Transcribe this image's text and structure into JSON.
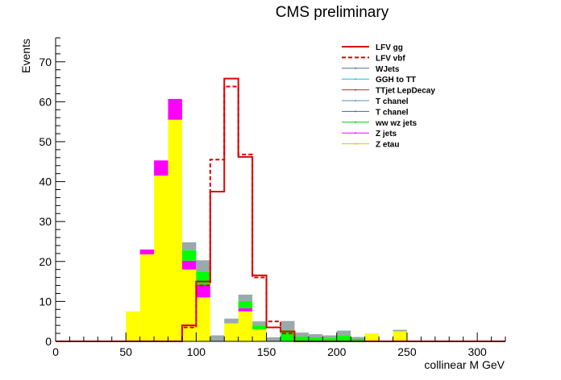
{
  "chart_data": {
    "type": "bar",
    "title": "CMS preliminary",
    "xlabel": "collinear M GeV",
    "ylabel": "Events",
    "xlim": [
      0,
      320
    ],
    "ylim": [
      0,
      76
    ],
    "grid": false,
    "legend_position": "top-right",
    "x_ticks": [
      0,
      50,
      100,
      150,
      200,
      250,
      300
    ],
    "y_ticks": [
      0,
      10,
      20,
      30,
      40,
      50,
      60,
      70
    ],
    "bin_width": 10,
    "stack": [
      {
        "name": "Z etau",
        "color": "#ffff00",
        "bins": [
          [
            50,
            7.5
          ],
          [
            60,
            21.8
          ],
          [
            70,
            41.5
          ],
          [
            80,
            55.5
          ],
          [
            90,
            18.0
          ],
          [
            100,
            11.0
          ],
          [
            120,
            4.5
          ],
          [
            130,
            7.5
          ],
          [
            140,
            3.0
          ],
          [
            220,
            2.0
          ],
          [
            240,
            2.5
          ]
        ]
      },
      {
        "name": "Z jets",
        "color": "#ff00ff",
        "bins": [
          [
            60,
            1.2
          ],
          [
            70,
            3.8
          ],
          [
            80,
            5.2
          ],
          [
            90,
            2.2
          ],
          [
            100,
            3.2
          ],
          [
            130,
            0.8
          ]
        ]
      },
      {
        "name": "ww wz jets",
        "color": "#00ff00",
        "bins": [
          [
            90,
            2.6
          ],
          [
            100,
            3.3
          ],
          [
            130,
            1.8
          ],
          [
            140,
            1.0
          ],
          [
            160,
            2.8
          ],
          [
            170,
            1.2
          ],
          [
            180,
            1.0
          ],
          [
            190,
            0.8
          ],
          [
            200,
            1.5
          ],
          [
            210,
            0.6
          ]
        ]
      },
      {
        "name": "T chanel",
        "color": "#99aaaa",
        "bins": [
          [
            90,
            2.0
          ],
          [
            100,
            2.8
          ],
          [
            110,
            1.5
          ],
          [
            120,
            1.2
          ],
          [
            130,
            1.6
          ],
          [
            140,
            1.0
          ],
          [
            150,
            1.0
          ],
          [
            160,
            2.3
          ],
          [
            170,
            1.0
          ],
          [
            180,
            0.8
          ],
          [
            190,
            0.7
          ],
          [
            200,
            1.2
          ],
          [
            210,
            0.5
          ],
          [
            240,
            0.4
          ]
        ]
      }
    ],
    "series": [
      {
        "name": "LFV gg",
        "color": "#dd0000",
        "style": "solid",
        "bins": [
          [
            90,
            4.0
          ],
          [
            100,
            15.0
          ],
          [
            110,
            37.5
          ],
          [
            120,
            65.8
          ],
          [
            130,
            46.2
          ],
          [
            140,
            16.5
          ],
          [
            150,
            3.5
          ],
          [
            160,
            2.5
          ]
        ]
      },
      {
        "name": "LFV vbf",
        "color": "#dd0000",
        "style": "dashed",
        "bins": [
          [
            90,
            3.5
          ],
          [
            100,
            14.0
          ],
          [
            110,
            45.5
          ],
          [
            120,
            63.8
          ],
          [
            130,
            46.8
          ],
          [
            140,
            16.0
          ],
          [
            150,
            5.0
          ],
          [
            160,
            2.0
          ]
        ]
      }
    ],
    "legend": [
      {
        "name": "LFV gg",
        "color": "#dd0000",
        "style": "solid-thick"
      },
      {
        "name": "LFV vbf",
        "color": "#dd0000",
        "style": "dashed"
      },
      {
        "name": "WJets",
        "color": "#4a6fa5",
        "style": "thin"
      },
      {
        "name": "GGH to TT",
        "color": "#00cccc",
        "style": "thin"
      },
      {
        "name": "TTjet LepDecay",
        "color": "#aa3333",
        "style": "thin"
      },
      {
        "name": "T chanel",
        "color": "#6688aa",
        "style": "thin"
      },
      {
        "name": "T chanel",
        "color": "#556677",
        "style": "thin"
      },
      {
        "name": "ww wz jets",
        "color": "#00cc00",
        "style": "thin"
      },
      {
        "name": "Z jets",
        "color": "#ff00ff",
        "style": "thin"
      },
      {
        "name": "Z etau",
        "color": "#cccc00",
        "style": "thin"
      }
    ]
  }
}
